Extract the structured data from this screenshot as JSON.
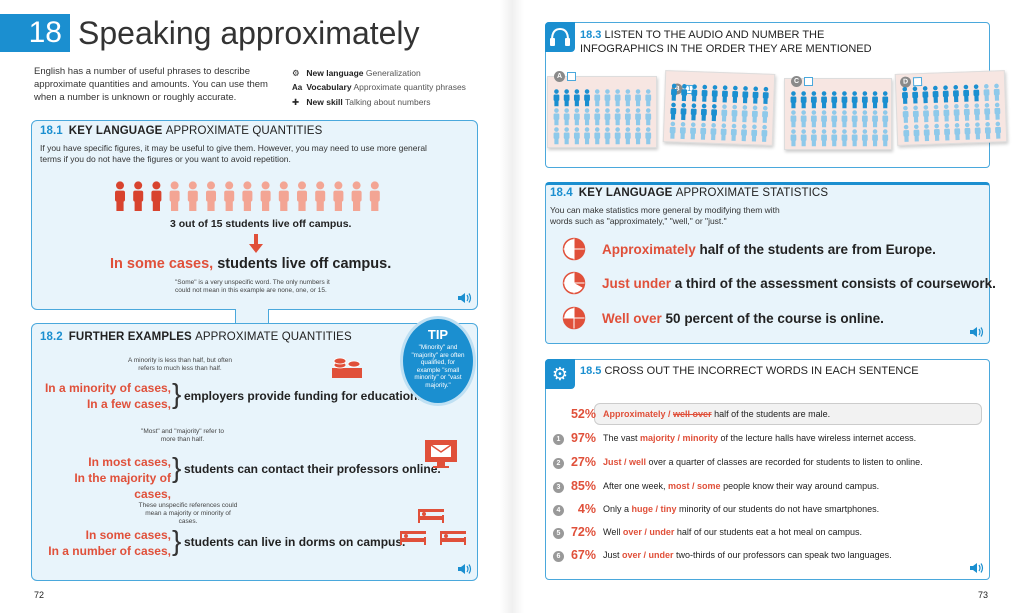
{
  "header": {
    "unit_number": "18",
    "title": "Speaking approximately",
    "intro": "English has a number of useful phrases to describe approximate quantities and amounts. You can use them when a number is unknown or roughly accurate.",
    "meta": [
      {
        "icon": "gear-icon",
        "label": "New language",
        "value": "Generalization"
      },
      {
        "icon": "aa-icon",
        "label": "Vocabulary",
        "value": "Approximate quantity phrases"
      },
      {
        "icon": "puzzle-icon",
        "label": "New skill",
        "value": "Talking about numbers"
      }
    ]
  },
  "s181": {
    "num": "18.1",
    "title_bold": "KEY LANGUAGE",
    "title_rest": "APPROXIMATE QUANTITIES",
    "desc": "If you have specific figures, it may be useful to give them. However, you may need to use more general terms if you do not have the figures or you want to avoid repetition.",
    "people_total": 15,
    "people_highlighted": 3,
    "specific": "3 out of 15 students live off campus.",
    "general_red": "In some cases,",
    "general_rest": "students live off campus.",
    "note": "\"Some\" is a very unspecific word. The only numbers it could not mean in this example are none, one, or 15."
  },
  "s182": {
    "num": "18.2",
    "title_bold": "FURTHER EXAMPLES",
    "title_rest": "APPROXIMATE QUANTITIES",
    "examples": [
      {
        "note": "A minority is less than half, but often refers to much less than half.",
        "a": "In a minority of cases,",
        "b": "In a few cases,",
        "rest": "employers provide funding for education."
      },
      {
        "note": "\"Most\" and \"majority\" refer to more than half.",
        "a": "In most cases,",
        "b": "In the majority of cases,",
        "rest": "students can contact their professors online."
      },
      {
        "note": "These unspecific references could mean a majority or minority of cases.",
        "a": "In some cases,",
        "b": "In a number of cases,",
        "rest": "students can live in dorms on campus."
      }
    ]
  },
  "tip": {
    "title": "TIP",
    "text": "\"Minority\" and \"majority\" are often qualified, for example \"small minority\" or \"vast majority.\""
  },
  "s183": {
    "num": "18.3",
    "title": "LISTEN TO THE AUDIO AND NUMBER THE INFOGRAPHICS IN THE ORDER THEY ARE MENTIONED",
    "cards": [
      {
        "letter": "A",
        "answer": "",
        "highlight": 4
      },
      {
        "letter": "B",
        "answer": "1",
        "highlight": 15
      },
      {
        "letter": "C",
        "answer": "",
        "highlight": 10
      },
      {
        "letter": "D",
        "answer": "",
        "highlight": 8
      }
    ]
  },
  "s184": {
    "num": "18.4",
    "title_bold": "KEY LANGUAGE",
    "title_rest": "APPROXIMATE STATISTICS",
    "desc": "You can make statistics more general by modifying them with words such as \"approximately,\" \"well,\" or \"just.\"",
    "lines": [
      {
        "red": "Approximately",
        "rest": "half of the students are from Europe.",
        "fraction": 0.5
      },
      {
        "red": "Just under",
        "rest": "a third of the assessment consists of coursework.",
        "fraction": 0.33
      },
      {
        "red": "Well over",
        "rest": "50 percent of the course is online.",
        "fraction": 0.75
      }
    ]
  },
  "s185": {
    "num": "18.5",
    "title": "CROSS OUT THE INCORRECT WORDS IN EACH SENTENCE",
    "example": {
      "pct": "52%",
      "correct": "Approximately",
      "sep": " / ",
      "wrong": "well over",
      "rest": " half of the students are male."
    },
    "items": [
      {
        "n": "1",
        "pct": "97%",
        "pre": "The vast ",
        "opt": "majority / minority",
        "post": " of the lecture halls have wireless internet access."
      },
      {
        "n": "2",
        "pct": "27%",
        "pre": "",
        "opt": "Just / well",
        "post": " over a quarter of classes are recorded for students to listen to online."
      },
      {
        "n": "3",
        "pct": "85%",
        "pre": "After one week, ",
        "opt": "most / some",
        "post": " people know their way around campus."
      },
      {
        "n": "4",
        "pct": "4%",
        "pre": "Only a ",
        "opt": "huge / tiny",
        "post": " minority of our students do not have smartphones."
      },
      {
        "n": "5",
        "pct": "72%",
        "pre": "Well ",
        "opt": "over / under",
        "post": " half of our students eat a hot meal on campus."
      },
      {
        "n": "6",
        "pct": "67%",
        "pre": "Just ",
        "opt": "over / under",
        "post": " two-thirds of our professors can speak two languages."
      }
    ]
  },
  "footer": {
    "left_page": "72",
    "right_page": "73"
  },
  "colors": {
    "accent": "#1b8fd0",
    "red": "#e0503a",
    "box": "#e8f4fb"
  }
}
